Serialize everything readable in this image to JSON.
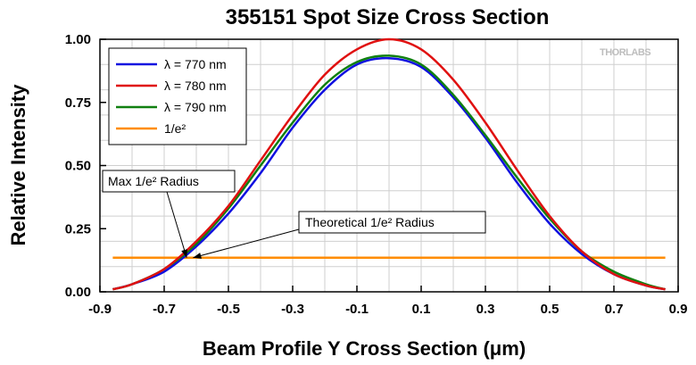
{
  "chart_data": {
    "type": "line",
    "title": "355151 Spot Size Cross Section",
    "xlabel": "Beam Profile Y Cross Section (μm)",
    "ylabel": "Relative Intensity",
    "xlim": [
      -0.9,
      0.9
    ],
    "ylim": [
      0,
      1.0
    ],
    "xticks": [
      "-0.9",
      "-0.7",
      "-0.5",
      "-0.3",
      "-0.1",
      "0.1",
      "0.3",
      "0.5",
      "0.7",
      "0.9"
    ],
    "yticks": [
      "0.00",
      "0.25",
      "0.50",
      "0.75",
      "1.00"
    ],
    "grid": true,
    "legend_position": "top-left",
    "x": [
      -0.86,
      -0.8,
      -0.7,
      -0.6,
      -0.5,
      -0.4,
      -0.3,
      -0.2,
      -0.1,
      0.0,
      0.1,
      0.2,
      0.3,
      0.4,
      0.5,
      0.6,
      0.7,
      0.8,
      0.86
    ],
    "series": [
      {
        "name": "770 nm",
        "color": "#1010e0",
        "values": [
          0.01,
          0.03,
          0.08,
          0.18,
          0.31,
          0.47,
          0.65,
          0.8,
          0.9,
          0.925,
          0.89,
          0.77,
          0.61,
          0.43,
          0.27,
          0.15,
          0.07,
          0.025,
          0.01
        ]
      },
      {
        "name": "780 nm",
        "color": "#e01010",
        "values": [
          0.01,
          0.03,
          0.09,
          0.2,
          0.34,
          0.52,
          0.7,
          0.86,
          0.96,
          1.0,
          0.96,
          0.84,
          0.67,
          0.48,
          0.3,
          0.16,
          0.07,
          0.025,
          0.01
        ]
      },
      {
        "name": "790 nm",
        "color": "#108010",
        "values": [
          0.01,
          0.03,
          0.09,
          0.19,
          0.33,
          0.5,
          0.67,
          0.82,
          0.91,
          0.935,
          0.9,
          0.78,
          0.62,
          0.45,
          0.29,
          0.16,
          0.08,
          0.03,
          0.01
        ]
      },
      {
        "name": "1/e²",
        "color": "#ff8c00",
        "values": [
          0.135,
          0.135,
          0.135,
          0.135,
          0.135,
          0.135,
          0.135,
          0.135,
          0.135,
          0.135,
          0.135,
          0.135,
          0.135,
          0.135,
          0.135,
          0.135,
          0.135,
          0.135,
          0.135
        ]
      }
    ],
    "legend_labels": [
      {
        "prefix": "λ",
        "text": " = 770 nm"
      },
      {
        "prefix": "λ",
        "text": " = 780 nm"
      },
      {
        "prefix": "λ",
        "text": " = 790 nm"
      },
      {
        "prefix": "",
        "text": "1/e²"
      }
    ],
    "annotations": [
      {
        "text": "Max 1/e² Radius",
        "target": [
          -0.63,
          0.135
        ]
      },
      {
        "text": "Theoretical 1/e² Radius",
        "target": [
          -0.61,
          0.135
        ]
      }
    ]
  },
  "logo_text": "THORLABS"
}
